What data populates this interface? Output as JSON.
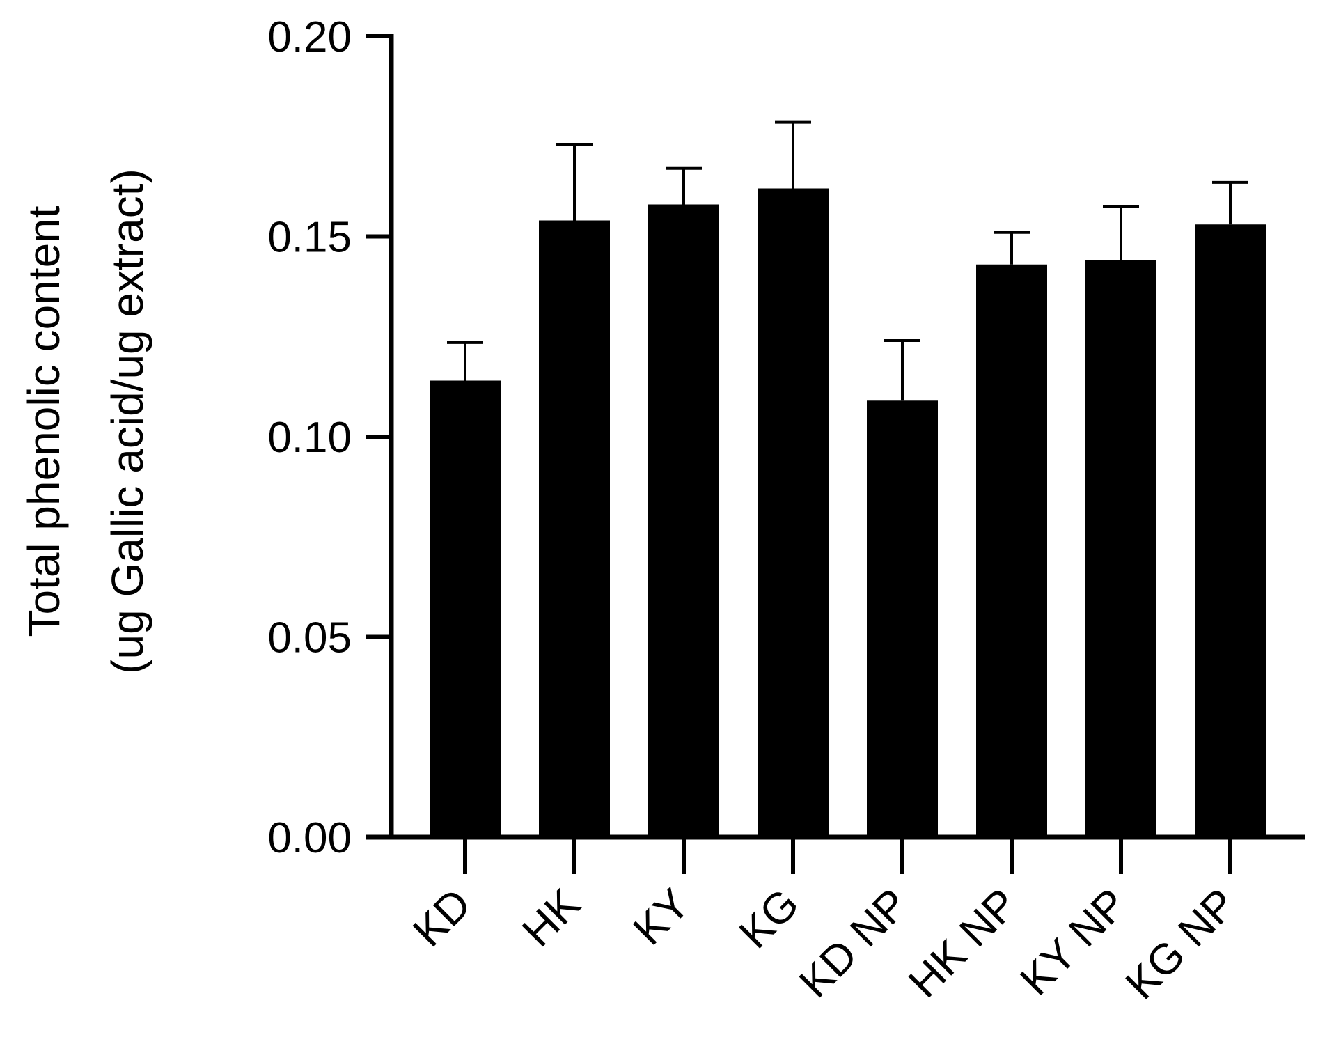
{
  "chart_data": {
    "type": "bar",
    "title": "",
    "xlabel": "",
    "ylabel_line1": "Total phenolic content",
    "ylabel_line2": "(ug Gallic acid/ug extract)",
    "ylim": [
      0,
      0.2
    ],
    "yticks": [
      0.0,
      0.05,
      0.1,
      0.15,
      0.2
    ],
    "ytick_labels": [
      "0.00",
      "0.05",
      "0.10",
      "0.15",
      "0.20"
    ],
    "categories": [
      "KD",
      "HK",
      "KY",
      "KG",
      "KD NP",
      "HK NP",
      "KY NP",
      "KG NP"
    ],
    "values": [
      0.114,
      0.154,
      0.158,
      0.162,
      0.109,
      0.143,
      0.144,
      0.153
    ],
    "error_upper": [
      0.0095,
      0.019,
      0.009,
      0.0165,
      0.015,
      0.008,
      0.0135,
      0.0105
    ],
    "bar_color": "#000000",
    "grid": false,
    "legend": "none"
  }
}
